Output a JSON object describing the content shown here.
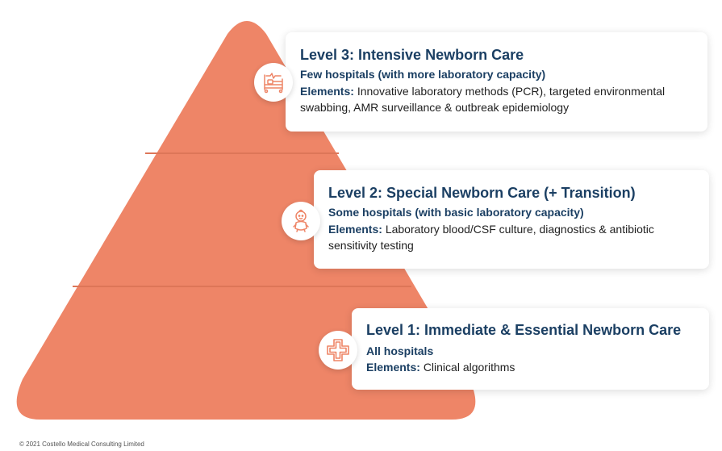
{
  "colors": {
    "pyramid_fill": "#ee8567",
    "separator": "#dd7658",
    "title_color": "#1b3f63",
    "icon_color": "#ee8567"
  },
  "levels": [
    {
      "title": "Level 3: Intensive Newborn Care",
      "subtitle": "Few hospitals (with more laboratory capacity)",
      "elements_label": "Elements:",
      "elements_text": "Innovative laboratory methods (PCR), targeted environmental swabbing, AMR surveillance & outbreak epidemiology",
      "icon": "hospital-bed-icon"
    },
    {
      "title": "Level 2: Special Newborn Care (+ Transition)",
      "subtitle": "Some hospitals (with basic laboratory capacity)",
      "elements_label": "Elements:",
      "elements_text": "Laboratory blood/CSF culture, diagnostics & antibiotic sensitivity testing",
      "icon": "baby-icon"
    },
    {
      "title": "Level 1: Immediate & Essential Newborn Care",
      "subtitle": "All hospitals",
      "elements_label": "Elements:",
      "elements_text": "Clinical algorithms",
      "icon": "medical-cross-icon"
    }
  ],
  "footer": {
    "copyright": "© 2021 Costello Medical Consulting Limited"
  }
}
